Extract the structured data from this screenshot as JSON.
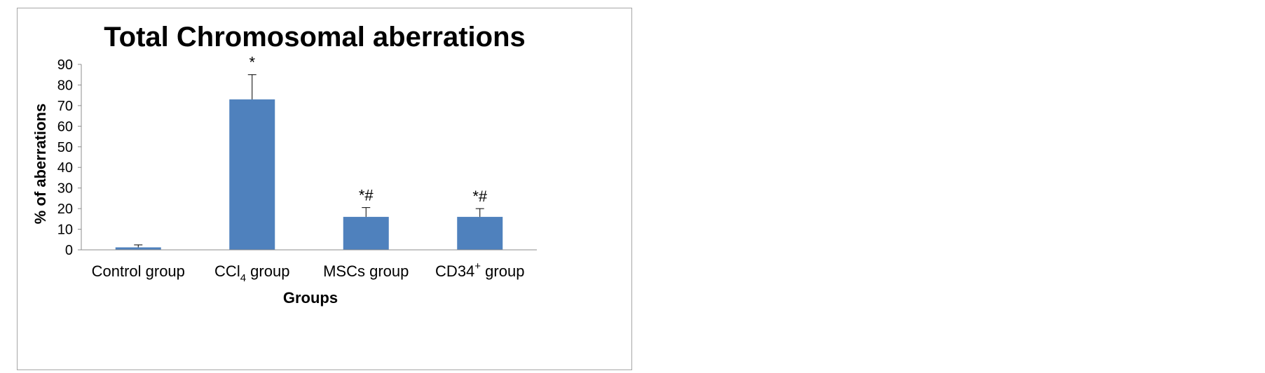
{
  "chart_data": {
    "type": "bar",
    "title": "Total Chromosomal aberrations",
    "xlabel": "Groups",
    "ylabel": "% of aberrations",
    "ylim": [
      0,
      90
    ],
    "yticks": [
      "0",
      "10",
      "20",
      "30",
      "40",
      "50",
      "60",
      "70",
      "80",
      "90"
    ],
    "categories": [
      {
        "base": "Control group",
        "sub": "",
        "sup": "",
        "rest": ""
      },
      {
        "base": "CCl",
        "sub": "4",
        "sup": "",
        "rest": " group"
      },
      {
        "base": "MSCs group",
        "sub": "",
        "sup": "",
        "rest": ""
      },
      {
        "base": "CD34",
        "sub": "",
        "sup": "+",
        "rest": " group"
      }
    ],
    "values": [
      1.2,
      73,
      16,
      16
    ],
    "errors": [
      1.2,
      12,
      4.5,
      4
    ],
    "significance": [
      "",
      "*",
      "*#",
      "*#"
    ],
    "bar_color": "#4f81bd",
    "grid": false,
    "legend": "none"
  }
}
